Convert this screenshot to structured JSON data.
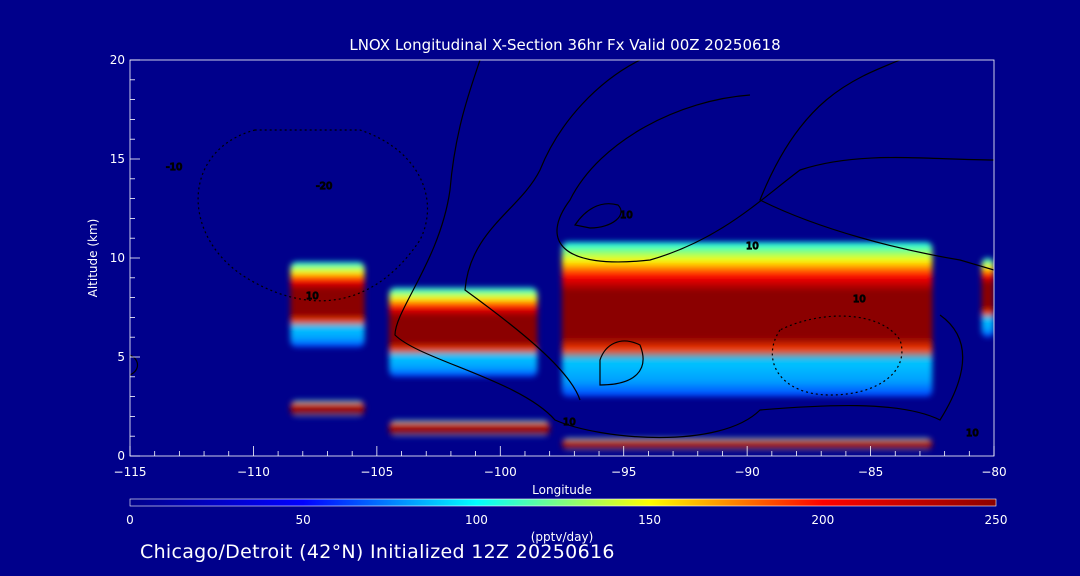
{
  "chart_data": {
    "type": "heatmap",
    "title": "LNOX Longitudinal X-Section 36hr  Fx Valid 00Z 20250618",
    "xlabel": "Longitude",
    "ylabel": "Altitude (km)",
    "xlim": [
      -115,
      -80
    ],
    "ylim": [
      0,
      20
    ],
    "x_ticks": [
      -115,
      -110,
      -105,
      -100,
      -95,
      -90,
      -85,
      -80
    ],
    "x_tick_labels": [
      "-115",
      "-110",
      "-105",
      "-100",
      "-95",
      "-90",
      "-85",
      "-80"
    ],
    "y_ticks": [
      0,
      5,
      10,
      15,
      20
    ],
    "y_tick_labels": [
      "0",
      "5",
      "10",
      "15",
      "20"
    ],
    "colorbar": {
      "label": "(pptv/day)",
      "min": 0,
      "max": 250,
      "ticks": [
        0,
        50,
        100,
        150,
        200,
        250
      ],
      "tick_labels": [
        "0",
        "50",
        "100",
        "150",
        "200",
        "250"
      ],
      "colormap": "jet",
      "colors": [
        "#00008b",
        "#0000ff",
        "#00ffff",
        "#ffff00",
        "#ff0000",
        "#8b0000"
      ]
    },
    "filled_regions": [
      {
        "name": "upper-band-west",
        "lon_range": [
          -108.5,
          -105.5
        ],
        "alt_range": [
          5.5,
          9.8
        ],
        "peak_value": 250
      },
      {
        "name": "upper-band-central",
        "lon_range": [
          -104.5,
          -98.5
        ],
        "alt_range": [
          4.0,
          8.5
        ],
        "peak_value": 250
      },
      {
        "name": "upper-band-east",
        "lon_range": [
          -97.5,
          -82.5
        ],
        "alt_range": [
          3.0,
          10.8
        ],
        "peak_value": 250
      },
      {
        "name": "upper-band-edge",
        "lon_range": [
          -80.5,
          -80
        ],
        "alt_range": [
          6.0,
          10.0
        ],
        "peak_value": 250
      },
      {
        "name": "surface-band-west",
        "lon_range": [
          -108.5,
          -105.5
        ],
        "alt_range": [
          2.0,
          2.8
        ],
        "peak_value": 250
      },
      {
        "name": "surface-band-central",
        "lon_range": [
          -104.5,
          -98
        ],
        "alt_range": [
          1.0,
          1.8
        ],
        "peak_value": 250
      },
      {
        "name": "surface-band-east",
        "lon_range": [
          -97.5,
          -82.5
        ],
        "alt_range": [
          0.3,
          0.9
        ],
        "peak_value": 250
      }
    ],
    "contour_labels": [
      "-10",
      "-20",
      "10",
      "10",
      "10",
      "10",
      "10",
      "10"
    ]
  },
  "footer": {
    "text": "Chicago/Detroit (42°N) Initialized 12Z 20250616"
  }
}
